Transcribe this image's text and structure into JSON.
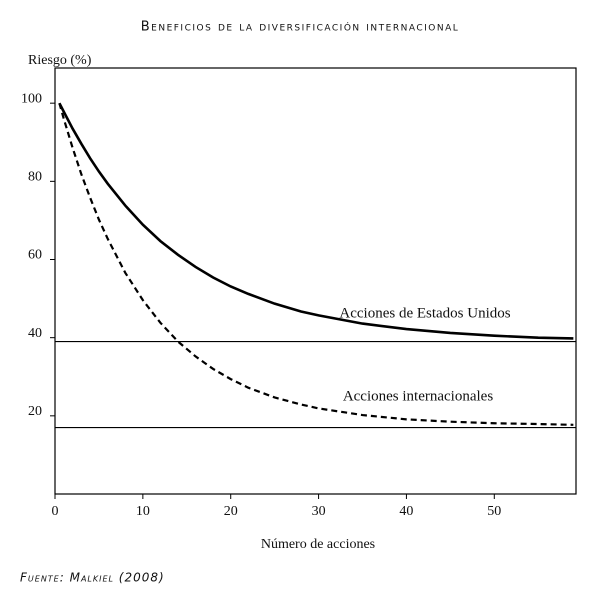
{
  "chart_data": {
    "type": "line",
    "title": "Beneficios de la diversificación internacional",
    "y_label": "Riesgo (%)",
    "x_label": "Número de acciones",
    "source": "Fuente: Malkiel (2008)",
    "x": [
      0.5,
      1,
      2,
      3,
      4,
      5,
      6,
      8,
      10,
      12,
      14,
      16,
      18,
      20,
      22,
      25,
      28,
      30,
      35,
      40,
      45,
      50,
      55,
      59
    ],
    "series": [
      {
        "name": "Acciones de Estados Unidos",
        "color": "#000000",
        "dash": false,
        "values": [
          100,
          97.8,
          93.5,
          89.6,
          85.9,
          82.5,
          79.4,
          73.8,
          68.9,
          64.7,
          61.2,
          58.1,
          55.4,
          53.1,
          51.2,
          48.7,
          46.7,
          45.7,
          43.6,
          42.2,
          41.2,
          40.5,
          40.0,
          39.8
        ]
      },
      {
        "name": "Acciones internacionales",
        "color": "#000000",
        "dash": true,
        "values": [
          100,
          96.0,
          88.6,
          81.8,
          75.8,
          70.2,
          65.3,
          56.6,
          49.6,
          43.8,
          39.0,
          35.2,
          32.0,
          29.4,
          27.2,
          24.7,
          22.9,
          21.9,
          20.2,
          19.1,
          18.5,
          18.1,
          17.9,
          17.7
        ]
      }
    ],
    "reference_lines": [
      39,
      17
    ],
    "xlim": [
      0,
      59.3
    ],
    "ylim": [
      0,
      109
    ],
    "xticks": [
      0,
      10,
      20,
      30,
      40,
      50
    ],
    "yticks": [
      20,
      40,
      60,
      80,
      100
    ]
  }
}
